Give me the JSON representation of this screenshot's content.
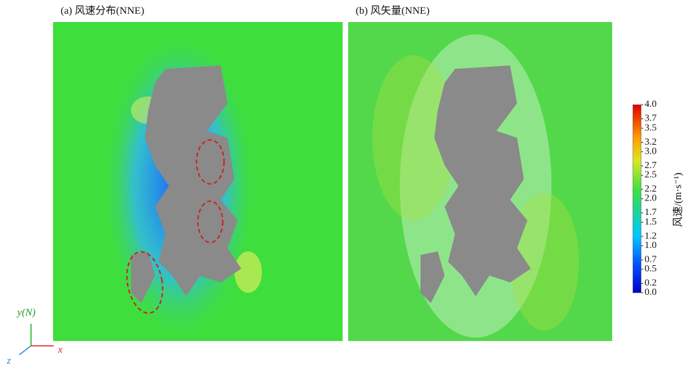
{
  "panels": [
    {
      "title": "(a) 风速分布(NNE)"
    },
    {
      "title": "(b) 风矢量(NNE)"
    }
  ],
  "colorbar": {
    "label": "风速/(m·s⁻¹)",
    "clim": [
      0,
      4
    ],
    "ticks": [
      {
        "value": 4,
        "label": "4.0"
      },
      3.7,
      3.5,
      3.2,
      {
        "value": 3,
        "label": "3.0"
      },
      2.7,
      2.5,
      2.2,
      {
        "value": 2,
        "label": "2.0"
      },
      1.7,
      1.5,
      1.2,
      {
        "value": 1,
        "label": "1.0"
      },
      0.7,
      0.5,
      0.2,
      {
        "value": 0,
        "label": "0.0"
      }
    ]
  },
  "axes": {
    "y": "y(N)",
    "x": "x",
    "z": "z"
  }
}
